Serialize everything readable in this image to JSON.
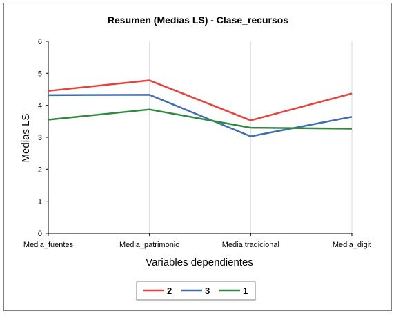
{
  "chart_data": {
    "type": "line",
    "title": "Resumen (Medias LS) - Clase_recursos",
    "xlabel": "Variables dependientes",
    "ylabel": "Medias LS",
    "categories": [
      "Media_fuentes",
      "Media_patrimonio",
      "Media tradicional",
      "Media_digit"
    ],
    "ylim": [
      0,
      6
    ],
    "yticks": [
      0,
      1,
      2,
      3,
      4,
      5,
      6
    ],
    "grid": "vertical",
    "legend_position": "bottom",
    "series": [
      {
        "name": "2",
        "color": "#e8403a",
        "values": [
          4.45,
          4.78,
          3.53,
          4.37
        ]
      },
      {
        "name": "3",
        "color": "#3f6db3",
        "values": [
          4.32,
          4.33,
          3.03,
          3.64
        ]
      },
      {
        "name": "1",
        "color": "#2e8b3e",
        "values": [
          3.55,
          3.87,
          3.3,
          3.27
        ]
      }
    ]
  }
}
